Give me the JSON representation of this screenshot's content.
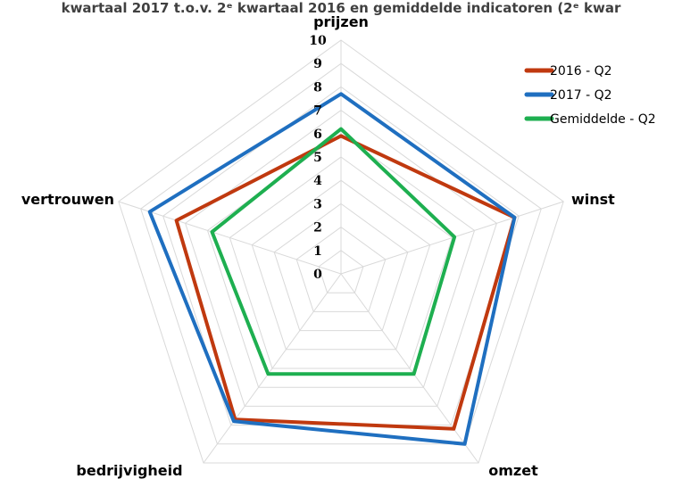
{
  "chart_data": {
    "type": "radar",
    "title": "kwartaal 2017 t.o.v. 2ᵉ kwartaal 2016 en gemiddelde indicatoren (2ᵉ kwar",
    "axes": [
      "prijzen",
      "winst",
      "omzet",
      "bedrijvigheid",
      "vertrouwen"
    ],
    "ticks": [
      "0",
      "1",
      "2",
      "3",
      "4",
      "5",
      "6",
      "7",
      "8",
      "9",
      "10"
    ],
    "rmin": 0,
    "rmax": 10,
    "grid": true,
    "legend_position": "top-right",
    "series": [
      {
        "name": "2016 - Q2",
        "color": "#C0390F",
        "values": [
          5.9,
          7.8,
          8.2,
          7.7,
          7.4
        ]
      },
      {
        "name": "2017 - Q2",
        "color": "#1F6FC0",
        "values": [
          7.7,
          7.8,
          9.0,
          7.8,
          8.6
        ]
      },
      {
        "name": "Gemiddelde - Q2",
        "color": "#1EAF50",
        "values": [
          6.2,
          5.1,
          5.3,
          5.3,
          5.8
        ]
      }
    ]
  }
}
